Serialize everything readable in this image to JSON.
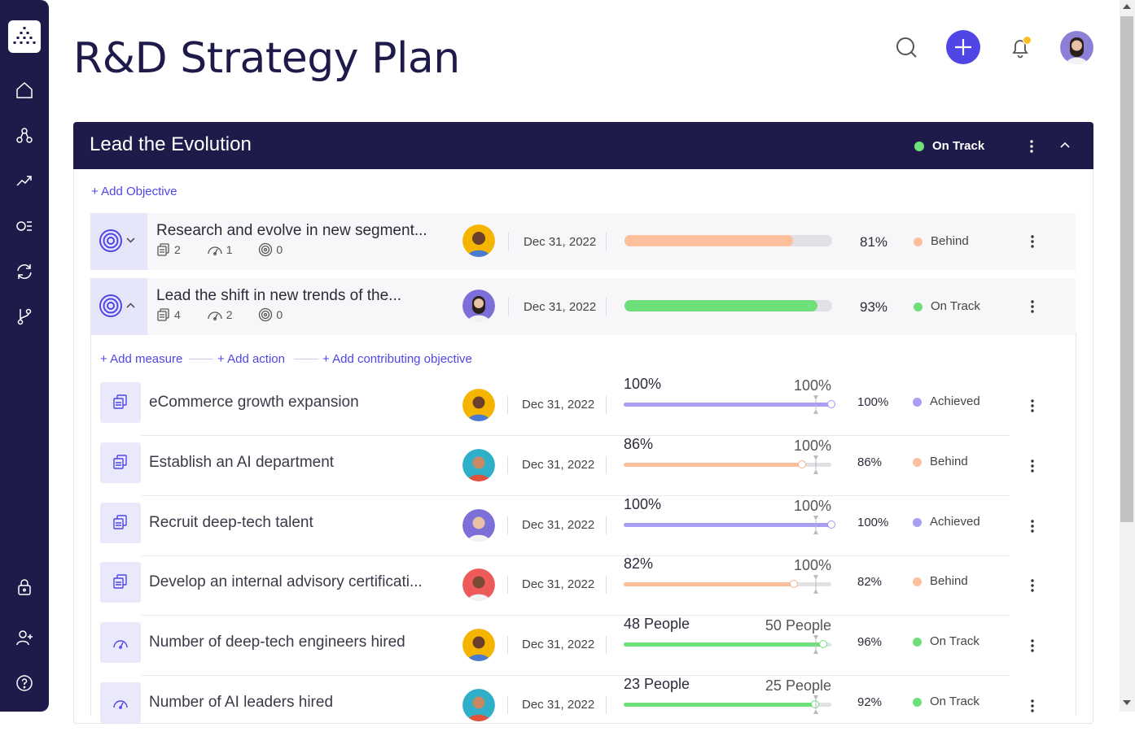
{
  "page": {
    "title": "R&D Strategy Plan"
  },
  "colors": {
    "navy": "#1e1b4b",
    "accent": "#4f46e5",
    "on_track": "#6ee07a",
    "behind": "#fdc09c",
    "achieved": "#a89ff5"
  },
  "sidebar": {
    "items": [
      "logo-icon",
      "home-icon",
      "hierarchy-icon",
      "trend-icon",
      "list-icon",
      "sync-icon",
      "branch-icon",
      "lock-icon",
      "add-user-icon",
      "help-icon"
    ]
  },
  "header": {
    "icons": [
      "search-icon",
      "plus-icon",
      "bell-icon",
      "user-avatar"
    ]
  },
  "goal": {
    "title": "Lead the Evolution",
    "status": "On Track",
    "add_objective": "+ Add Objective"
  },
  "objectives": [
    {
      "title": "Research and evolve in new segment...",
      "measures": "2",
      "actions": "1",
      "objectives": "0",
      "date": "Dec 31, 2022",
      "progress_pct": 81,
      "pct_label": "81%",
      "status": "Behind"
    },
    {
      "title": "Lead the shift in new trends of the...",
      "measures": "4",
      "actions": "2",
      "objectives": "0",
      "date": "Dec 31, 2022",
      "progress_pct": 93,
      "pct_label": "93%",
      "status": "On Track"
    }
  ],
  "expanded": {
    "add_measure": "+ Add measure",
    "add_action": "+ Add action",
    "add_contributing": "+ Add contributing objective"
  },
  "measures": [
    {
      "title": "eCommerce growth expansion",
      "date": "Dec 31, 2022",
      "current": "100%",
      "target": "100%",
      "progress": 1.0,
      "pct": "100%",
      "status": "Achieved",
      "kind": "measure"
    },
    {
      "title": "Establish an AI department",
      "date": "Dec 31, 2022",
      "current": "86%",
      "target": "100%",
      "progress": 0.86,
      "pct": "86%",
      "status": "Behind",
      "kind": "measure"
    },
    {
      "title": "Recruit deep-tech talent",
      "date": "Dec 31, 2022",
      "current": "100%",
      "target": "100%",
      "progress": 1.0,
      "pct": "100%",
      "status": "Achieved",
      "kind": "measure"
    },
    {
      "title": "Develop an internal advisory certificati...",
      "date": "Dec 31, 2022",
      "current": "82%",
      "target": "100%",
      "progress": 0.82,
      "pct": "82%",
      "status": "Behind",
      "kind": "measure"
    },
    {
      "title": "Number of deep-tech engineers hired",
      "date": "Dec 31, 2022",
      "current": "48 People",
      "target": "50 People",
      "progress": 0.96,
      "pct": "96%",
      "status": "On Track",
      "kind": "action"
    },
    {
      "title": "Number of AI leaders hired",
      "date": "Dec 31, 2022",
      "current": "23 People",
      "target": "25 People",
      "progress": 0.92,
      "pct": "92%",
      "status": "On Track",
      "kind": "action"
    }
  ]
}
